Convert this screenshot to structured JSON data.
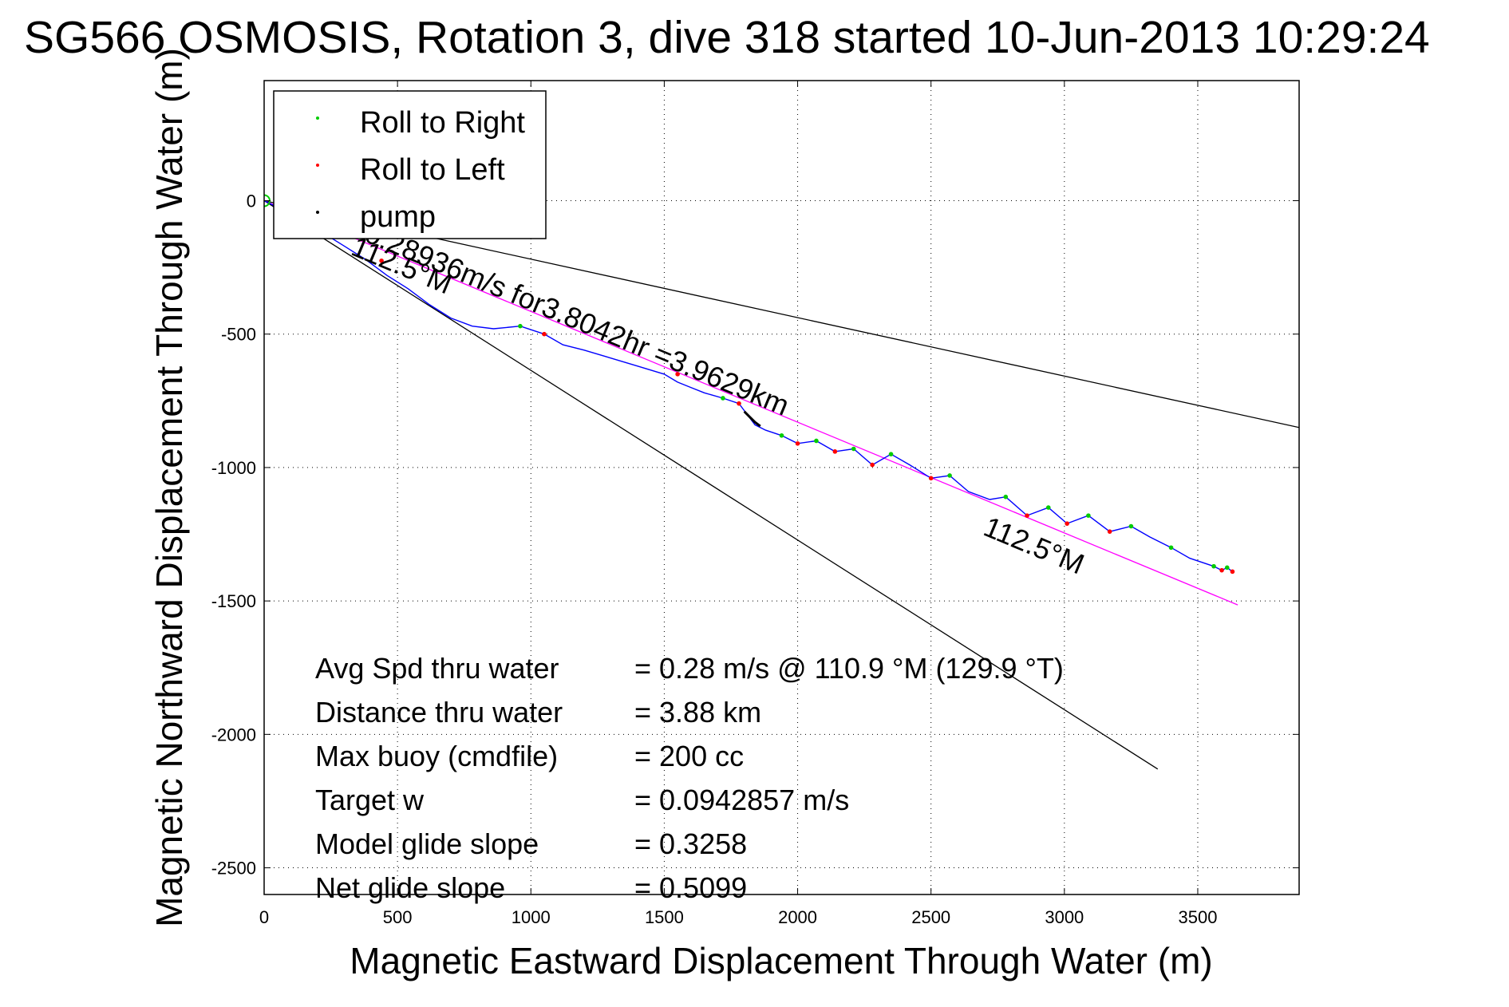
{
  "chart_data": {
    "type": "scatter",
    "title": "SG566 OSMOSIS, Rotation 3, dive 318 started 10-Jun-2013 10:29:24",
    "xlabel": "Magnetic Eastward Displacement Through Water (m)",
    "ylabel": "Magnetic Northward Displacement Through Water (m)",
    "xlim": [
      0,
      3880
    ],
    "ylim": [
      -2600,
      450
    ],
    "xticks": [
      0,
      500,
      1000,
      1500,
      2000,
      2500,
      3000,
      3500
    ],
    "yticks": [
      0,
      -500,
      -1000,
      -1500,
      -2000,
      -2500
    ],
    "grid": true,
    "legend_position": "top-left",
    "legend": [
      {
        "label": "Roll to Right",
        "color": "#00cc00"
      },
      {
        "label": "Roll to Left",
        "color": "#ff0000"
      },
      {
        "label": "pump",
        "color": "#000000"
      }
    ],
    "track": {
      "color": "#0000ff",
      "x": [
        0,
        60,
        140,
        220,
        300,
        380,
        460,
        540,
        620,
        700,
        780,
        860,
        960,
        1050,
        1120,
        1200,
        1300,
        1400,
        1500,
        1550,
        1600,
        1650,
        1720,
        1780,
        1810,
        1840,
        1880,
        1940,
        2000,
        2070,
        2140,
        2210,
        2280,
        2350,
        2420,
        2500,
        2570,
        2640,
        2720,
        2780,
        2860,
        2940,
        3010,
        3090,
        3170,
        3250,
        3320,
        3400,
        3470,
        3560,
        3590,
        3610,
        3630
      ],
      "y": [
        0,
        -30,
        -70,
        -120,
        -170,
        -220,
        -280,
        -330,
        -390,
        -440,
        -470,
        -480,
        -470,
        -500,
        -540,
        -560,
        -590,
        -620,
        -650,
        -680,
        -700,
        -720,
        -740,
        -760,
        -800,
        -840,
        -860,
        -880,
        -910,
        -900,
        -940,
        -930,
        -990,
        -950,
        -990,
        -1040,
        -1030,
        -1090,
        -1120,
        -1110,
        -1180,
        -1150,
        -1210,
        -1180,
        -1240,
        -1220,
        -1260,
        -1300,
        -1340,
        -1370,
        -1385,
        -1375,
        -1390
      ]
    },
    "roll_to_right": {
      "x": [
        960,
        1720,
        1940,
        2070,
        2210,
        2350,
        2570,
        2780,
        2940,
        3090,
        3250,
        3400,
        3560,
        3610
      ],
      "y": [
        -470,
        -740,
        -880,
        -900,
        -930,
        -950,
        -1030,
        -1110,
        -1150,
        -1180,
        -1220,
        -1300,
        -1370,
        -1375
      ]
    },
    "roll_to_left": {
      "x": [
        440,
        1050,
        1550,
        1780,
        2000,
        2140,
        2280,
        2500,
        2860,
        3010,
        3170,
        3590,
        3630
      ],
      "y": [
        -225,
        -500,
        -650,
        -760,
        -910,
        -940,
        -990,
        -1040,
        -1180,
        -1210,
        -1240,
        -1385,
        -1390
      ]
    },
    "pump": {
      "x": [
        1800,
        1820,
        1840,
        1860
      ],
      "y": [
        -790,
        -810,
        -830,
        -845
      ]
    },
    "reference_lines": [
      {
        "name": "heading",
        "color": "#000000",
        "x": [
          0,
          3880
        ],
        "y": [
          0,
          -850
        ]
      },
      {
        "name": "heading",
        "color": "#000000",
        "x": [
          0,
          3350
        ],
        "y": [
          0,
          -2130
        ]
      },
      {
        "name": "course",
        "color": "#ff00ff",
        "x": [
          0,
          3650
        ],
        "y": [
          0,
          -1515
        ]
      }
    ],
    "annotations": [
      {
        "text": "0.28936m/s for3.8042hr =3.9629km",
        "x": 370,
        "y": -150,
        "rotate": 22.6
      },
      {
        "text": "112.5°M",
        "x": 320,
        "y": -200,
        "rotate": 22.6
      },
      {
        "text": "112.5°M",
        "x": 2690,
        "y": -1250,
        "rotate": 22.6
      }
    ],
    "stats": [
      {
        "label": "Avg Spd thru water",
        "value": "=  0.28 m/s @ 110.9 °M (129.9 °T)"
      },
      {
        "label": "Distance thru water",
        "value": "=  3.88 km"
      },
      {
        "label": "Max buoy (cmdfile)",
        "value": "= 200 cc"
      },
      {
        "label": "Target w",
        "value": "= 0.0942857 m/s"
      },
      {
        "label": "Model glide slope",
        "value": "= 0.3258"
      },
      {
        "label": "Net glide slope",
        "value": "= 0.5099"
      }
    ]
  }
}
